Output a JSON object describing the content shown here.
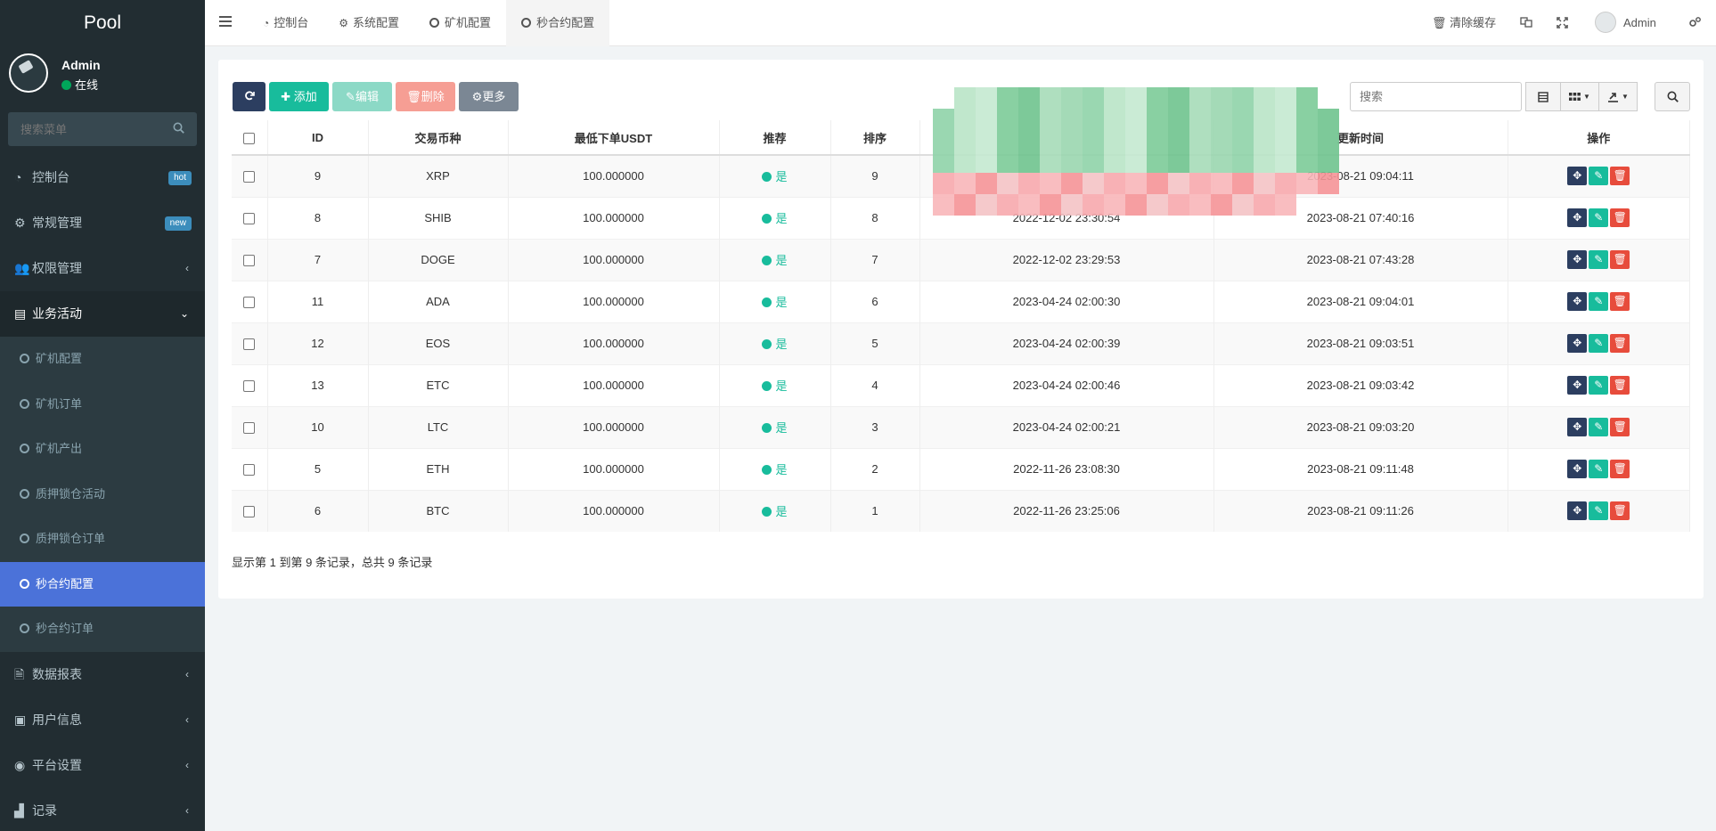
{
  "sidebar": {
    "brand": "Pool",
    "user": {
      "name": "Admin",
      "status": "在线"
    },
    "search_placeholder": "搜索菜单",
    "items": [
      {
        "label": "控制台",
        "badge": "hot",
        "badge_color": "#3c8dbc",
        "icon": "dashboard-icon"
      },
      {
        "label": "常规管理",
        "badge": "new",
        "badge_color": "#3c8dbc",
        "icon": "cogs-icon"
      },
      {
        "label": "权限管理",
        "chevron": "‹",
        "icon": "group-icon"
      },
      {
        "label": "业务活动",
        "chevron": "⌄",
        "icon": "list-alt-icon"
      }
    ],
    "subitems": [
      {
        "label": "矿机配置"
      },
      {
        "label": "矿机订单"
      },
      {
        "label": "矿机产出"
      },
      {
        "label": "质押锁仓活动"
      },
      {
        "label": "质押锁仓订单"
      },
      {
        "label": "秒合约配置"
      },
      {
        "label": "秒合约订单"
      }
    ],
    "items_after": [
      {
        "label": "数据报表",
        "chevron": "‹",
        "icon": "file-icon"
      },
      {
        "label": "用户信息",
        "chevron": "‹",
        "icon": "user-box-icon"
      },
      {
        "label": "平台设置",
        "chevron": "‹",
        "icon": "settings-circle-icon"
      },
      {
        "label": "记录",
        "chevron": "‹",
        "icon": "chart-area-icon"
      }
    ]
  },
  "topbar": {
    "tabs": [
      {
        "label": "控制台",
        "icon": "dashboard-icon"
      },
      {
        "label": "系统配置",
        "icon": "gear-icon"
      },
      {
        "label": "矿机配置",
        "icon": "circle-icon"
      },
      {
        "label": "秒合约配置",
        "icon": "circle-icon"
      }
    ],
    "clear_cache": "清除缓存",
    "admin": "Admin"
  },
  "toolbar": {
    "add": "添加",
    "edit": "编辑",
    "delete": "删除",
    "more": "更多",
    "search_placeholder": "搜索"
  },
  "table": {
    "headers": [
      "ID",
      "交易币种",
      "最低下单USDT",
      "推荐",
      "排序",
      "",
      "更新时间",
      "操作"
    ],
    "rows": [
      {
        "id": "9",
        "coin": "XRP",
        "min": "100.000000",
        "rec": "是",
        "sort": "9",
        "created": "",
        "updated": "2023-08-21 09:04:11"
      },
      {
        "id": "8",
        "coin": "SHIB",
        "min": "100.000000",
        "rec": "是",
        "sort": "8",
        "created": "2022-12-02 23:30:54",
        "updated": "2023-08-21 07:40:16"
      },
      {
        "id": "7",
        "coin": "DOGE",
        "min": "100.000000",
        "rec": "是",
        "sort": "7",
        "created": "2022-12-02 23:29:53",
        "updated": "2023-08-21 07:43:28"
      },
      {
        "id": "11",
        "coin": "ADA",
        "min": "100.000000",
        "rec": "是",
        "sort": "6",
        "created": "2023-04-24 02:00:30",
        "updated": "2023-08-21 09:04:01"
      },
      {
        "id": "12",
        "coin": "EOS",
        "min": "100.000000",
        "rec": "是",
        "sort": "5",
        "created": "2023-04-24 02:00:39",
        "updated": "2023-08-21 09:03:51"
      },
      {
        "id": "13",
        "coin": "ETC",
        "min": "100.000000",
        "rec": "是",
        "sort": "4",
        "created": "2023-04-24 02:00:46",
        "updated": "2023-08-21 09:03:42"
      },
      {
        "id": "10",
        "coin": "LTC",
        "min": "100.000000",
        "rec": "是",
        "sort": "3",
        "created": "2023-04-24 02:00:21",
        "updated": "2023-08-21 09:03:20"
      },
      {
        "id": "5",
        "coin": "ETH",
        "min": "100.000000",
        "rec": "是",
        "sort": "2",
        "created": "2022-11-26 23:08:30",
        "updated": "2023-08-21 09:11:48"
      },
      {
        "id": "6",
        "coin": "BTC",
        "min": "100.000000",
        "rec": "是",
        "sort": "1",
        "created": "2022-11-26 23:25:06",
        "updated": "2023-08-21 09:11:26"
      }
    ]
  },
  "pagination": {
    "info": "显示第 1 到第 9 条记录，总共 9 条记录"
  }
}
